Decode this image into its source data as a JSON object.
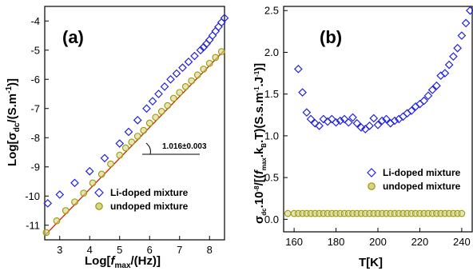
{
  "chart_data": [
    {
      "panel": "(a)",
      "type": "scatter",
      "xlabel": "Log[fmax/(Hz)]",
      "ylabel": "Log[σdc/(S.m-1)]",
      "xlim": [
        2.5,
        8.5
      ],
      "ylim": [
        -11.5,
        -3.5
      ],
      "xticks": [
        3,
        4,
        5,
        6,
        7,
        8
      ],
      "yticks": [
        -11,
        -10,
        -9,
        -8,
        -7,
        -6,
        -5,
        -4
      ],
      "legend": "bottom-right",
      "annotation": "1.016±0.003",
      "series": [
        {
          "name": "Li-doped mixture",
          "marker": "diamond",
          "color": "#2222dd",
          "x": [
            2.6,
            3.0,
            3.5,
            4.0,
            4.5,
            5.0,
            5.3,
            5.6,
            5.9,
            6.1,
            6.3,
            6.5,
            6.7,
            6.9,
            7.1,
            7.3,
            7.5,
            7.7,
            7.8,
            7.9,
            8.0,
            8.1,
            8.2,
            8.3,
            8.4,
            8.5
          ],
          "y": [
            -10.25,
            -9.95,
            -9.55,
            -9.15,
            -8.7,
            -8.2,
            -7.8,
            -7.4,
            -7.0,
            -6.75,
            -6.5,
            -6.25,
            -6.0,
            -5.8,
            -5.6,
            -5.4,
            -5.2,
            -5.0,
            -4.9,
            -4.78,
            -4.65,
            -4.5,
            -4.35,
            -4.2,
            -4.05,
            -3.9
          ]
        },
        {
          "name": "undoped mixture",
          "marker": "circle",
          "color": "#999900",
          "x": [
            2.55,
            2.9,
            3.2,
            3.5,
            3.8,
            4.1,
            4.4,
            4.7,
            5.0,
            5.2,
            5.4,
            5.6,
            5.8,
            6.0,
            6.2,
            6.4,
            6.6,
            6.8,
            7.0,
            7.2,
            7.4,
            7.6,
            7.8,
            8.0,
            8.2,
            8.4
          ],
          "y": [
            -11.25,
            -10.85,
            -10.5,
            -10.2,
            -9.9,
            -9.55,
            -9.25,
            -8.9,
            -8.6,
            -8.35,
            -8.15,
            -7.95,
            -7.75,
            -7.5,
            -7.3,
            -7.1,
            -6.9,
            -6.65,
            -6.45,
            -6.25,
            -6.05,
            -5.85,
            -5.65,
            -5.45,
            -5.25,
            -5.05
          ]
        }
      ],
      "fit_line": {
        "x": [
          2.5,
          8.5
        ],
        "y": [
          -11.35,
          -5.0
        ],
        "color": "#cc2200"
      }
    },
    {
      "panel": "(b)",
      "type": "scatter",
      "xlabel": "T[K]",
      "ylabel": "σdc.10-8/[(fmax.kB.T)(S.s.m-1.J-1)]",
      "xlim": [
        155,
        245
      ],
      "ylim": [
        -0.15,
        2.55
      ],
      "xticks": [
        160,
        180,
        200,
        220,
        240
      ],
      "yticks": [
        0.0,
        0.5,
        1.0,
        1.5,
        2.0,
        2.5
      ],
      "legend": "right",
      "series": [
        {
          "name": "Li-doped mixture",
          "marker": "diamond",
          "color": "#2222dd",
          "x": [
            162,
            164,
            166,
            168,
            170,
            172,
            174,
            176,
            178,
            180,
            182,
            184,
            186,
            188,
            190,
            192,
            194,
            196,
            198,
            200,
            202,
            204,
            206,
            208,
            210,
            212,
            214,
            216,
            218,
            220,
            222,
            224,
            226,
            228,
            230,
            232,
            234,
            236,
            238,
            240,
            242,
            244
          ],
          "y": [
            1.8,
            1.52,
            1.28,
            1.2,
            1.15,
            1.12,
            1.2,
            1.17,
            1.2,
            1.16,
            1.18,
            1.2,
            1.16,
            1.22,
            1.15,
            1.1,
            1.08,
            1.12,
            1.21,
            1.13,
            1.18,
            1.2,
            1.15,
            1.18,
            1.2,
            1.23,
            1.27,
            1.3,
            1.35,
            1.38,
            1.42,
            1.48,
            1.55,
            1.6,
            1.72,
            1.75,
            1.85,
            1.95,
            2.05,
            2.2,
            2.35,
            2.5
          ]
        },
        {
          "name": "undoped mixture",
          "marker": "circle",
          "color": "#999900",
          "x": [
            157,
            160,
            162,
            164,
            166,
            168,
            170,
            172,
            174,
            176,
            178,
            180,
            182,
            184,
            186,
            188,
            190,
            192,
            194,
            196,
            198,
            200,
            202,
            204,
            206,
            208,
            210,
            212,
            214,
            216,
            218,
            220,
            222,
            224,
            226,
            228,
            230,
            232,
            234,
            236,
            238,
            240
          ],
          "y": [
            0.07,
            0.07,
            0.07,
            0.07,
            0.07,
            0.07,
            0.07,
            0.07,
            0.07,
            0.07,
            0.07,
            0.07,
            0.07,
            0.07,
            0.07,
            0.07,
            0.07,
            0.07,
            0.07,
            0.07,
            0.07,
            0.07,
            0.07,
            0.07,
            0.07,
            0.07,
            0.07,
            0.07,
            0.07,
            0.07,
            0.07,
            0.07,
            0.07,
            0.07,
            0.07,
            0.07,
            0.07,
            0.07,
            0.07,
            0.07,
            0.07,
            0.07
          ]
        }
      ]
    }
  ]
}
